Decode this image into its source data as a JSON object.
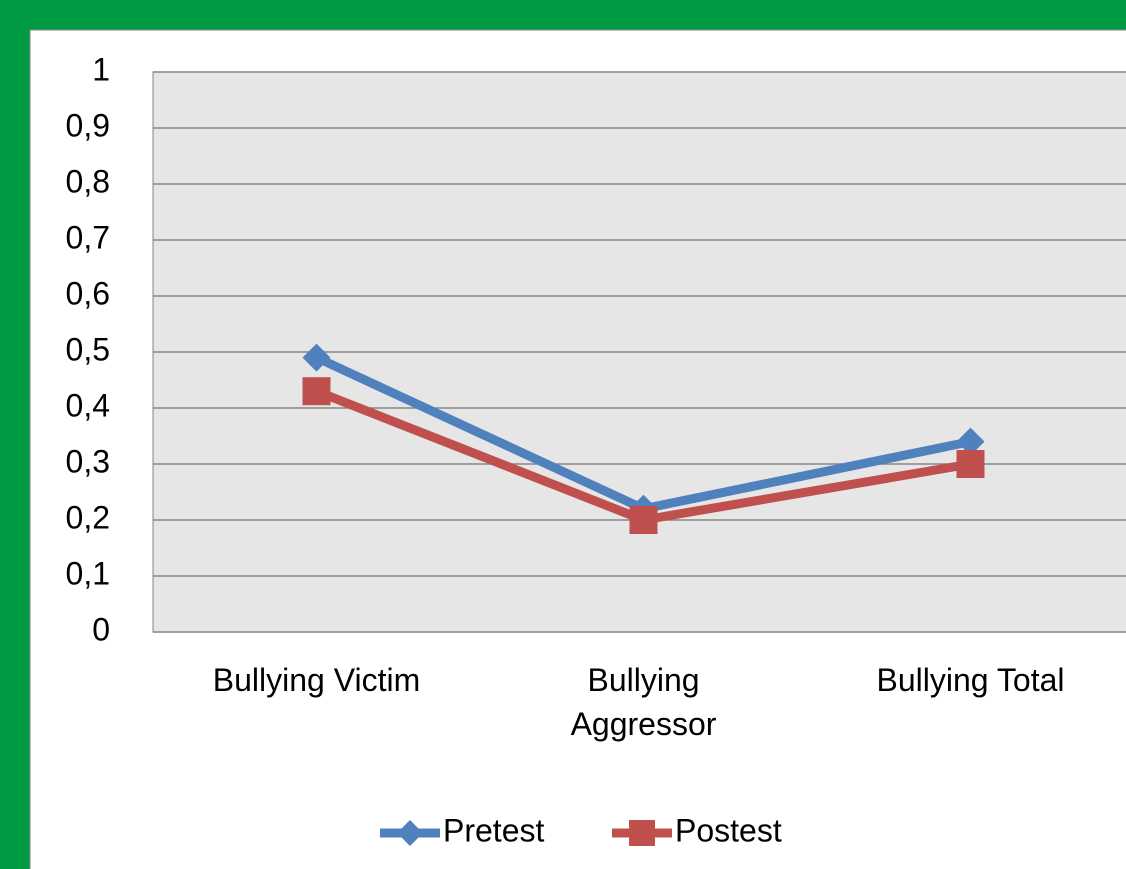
{
  "chart_data": {
    "type": "line",
    "categories": [
      "Bullying Victim",
      "Bullying Aggressor",
      "Bullying Total"
    ],
    "series": [
      {
        "name": "Pretest",
        "color": "#4f81bd",
        "marker": "diamond",
        "values": [
          0.49,
          0.22,
          0.34
        ]
      },
      {
        "name": "Postest",
        "color": "#c0504d",
        "marker": "square",
        "values": [
          0.43,
          0.2,
          0.3
        ]
      }
    ],
    "ylim": [
      0,
      1
    ],
    "yticks": [
      0,
      {
        "value": 0.1,
        "label": "0,1"
      },
      {
        "value": 0.2,
        "label": "0,2"
      },
      {
        "value": 0.3,
        "label": "0,3"
      },
      {
        "value": 0.4,
        "label": "0,4"
      },
      {
        "value": 0.5,
        "label": "0,5"
      },
      {
        "value": 0.6,
        "label": "0,6"
      },
      {
        "value": 0.7,
        "label": "0,7"
      },
      {
        "value": 0.8,
        "label": "0,8"
      },
      {
        "value": 0.9,
        "label": "0,9"
      },
      1
    ],
    "grid": true,
    "legend": "bottom"
  }
}
